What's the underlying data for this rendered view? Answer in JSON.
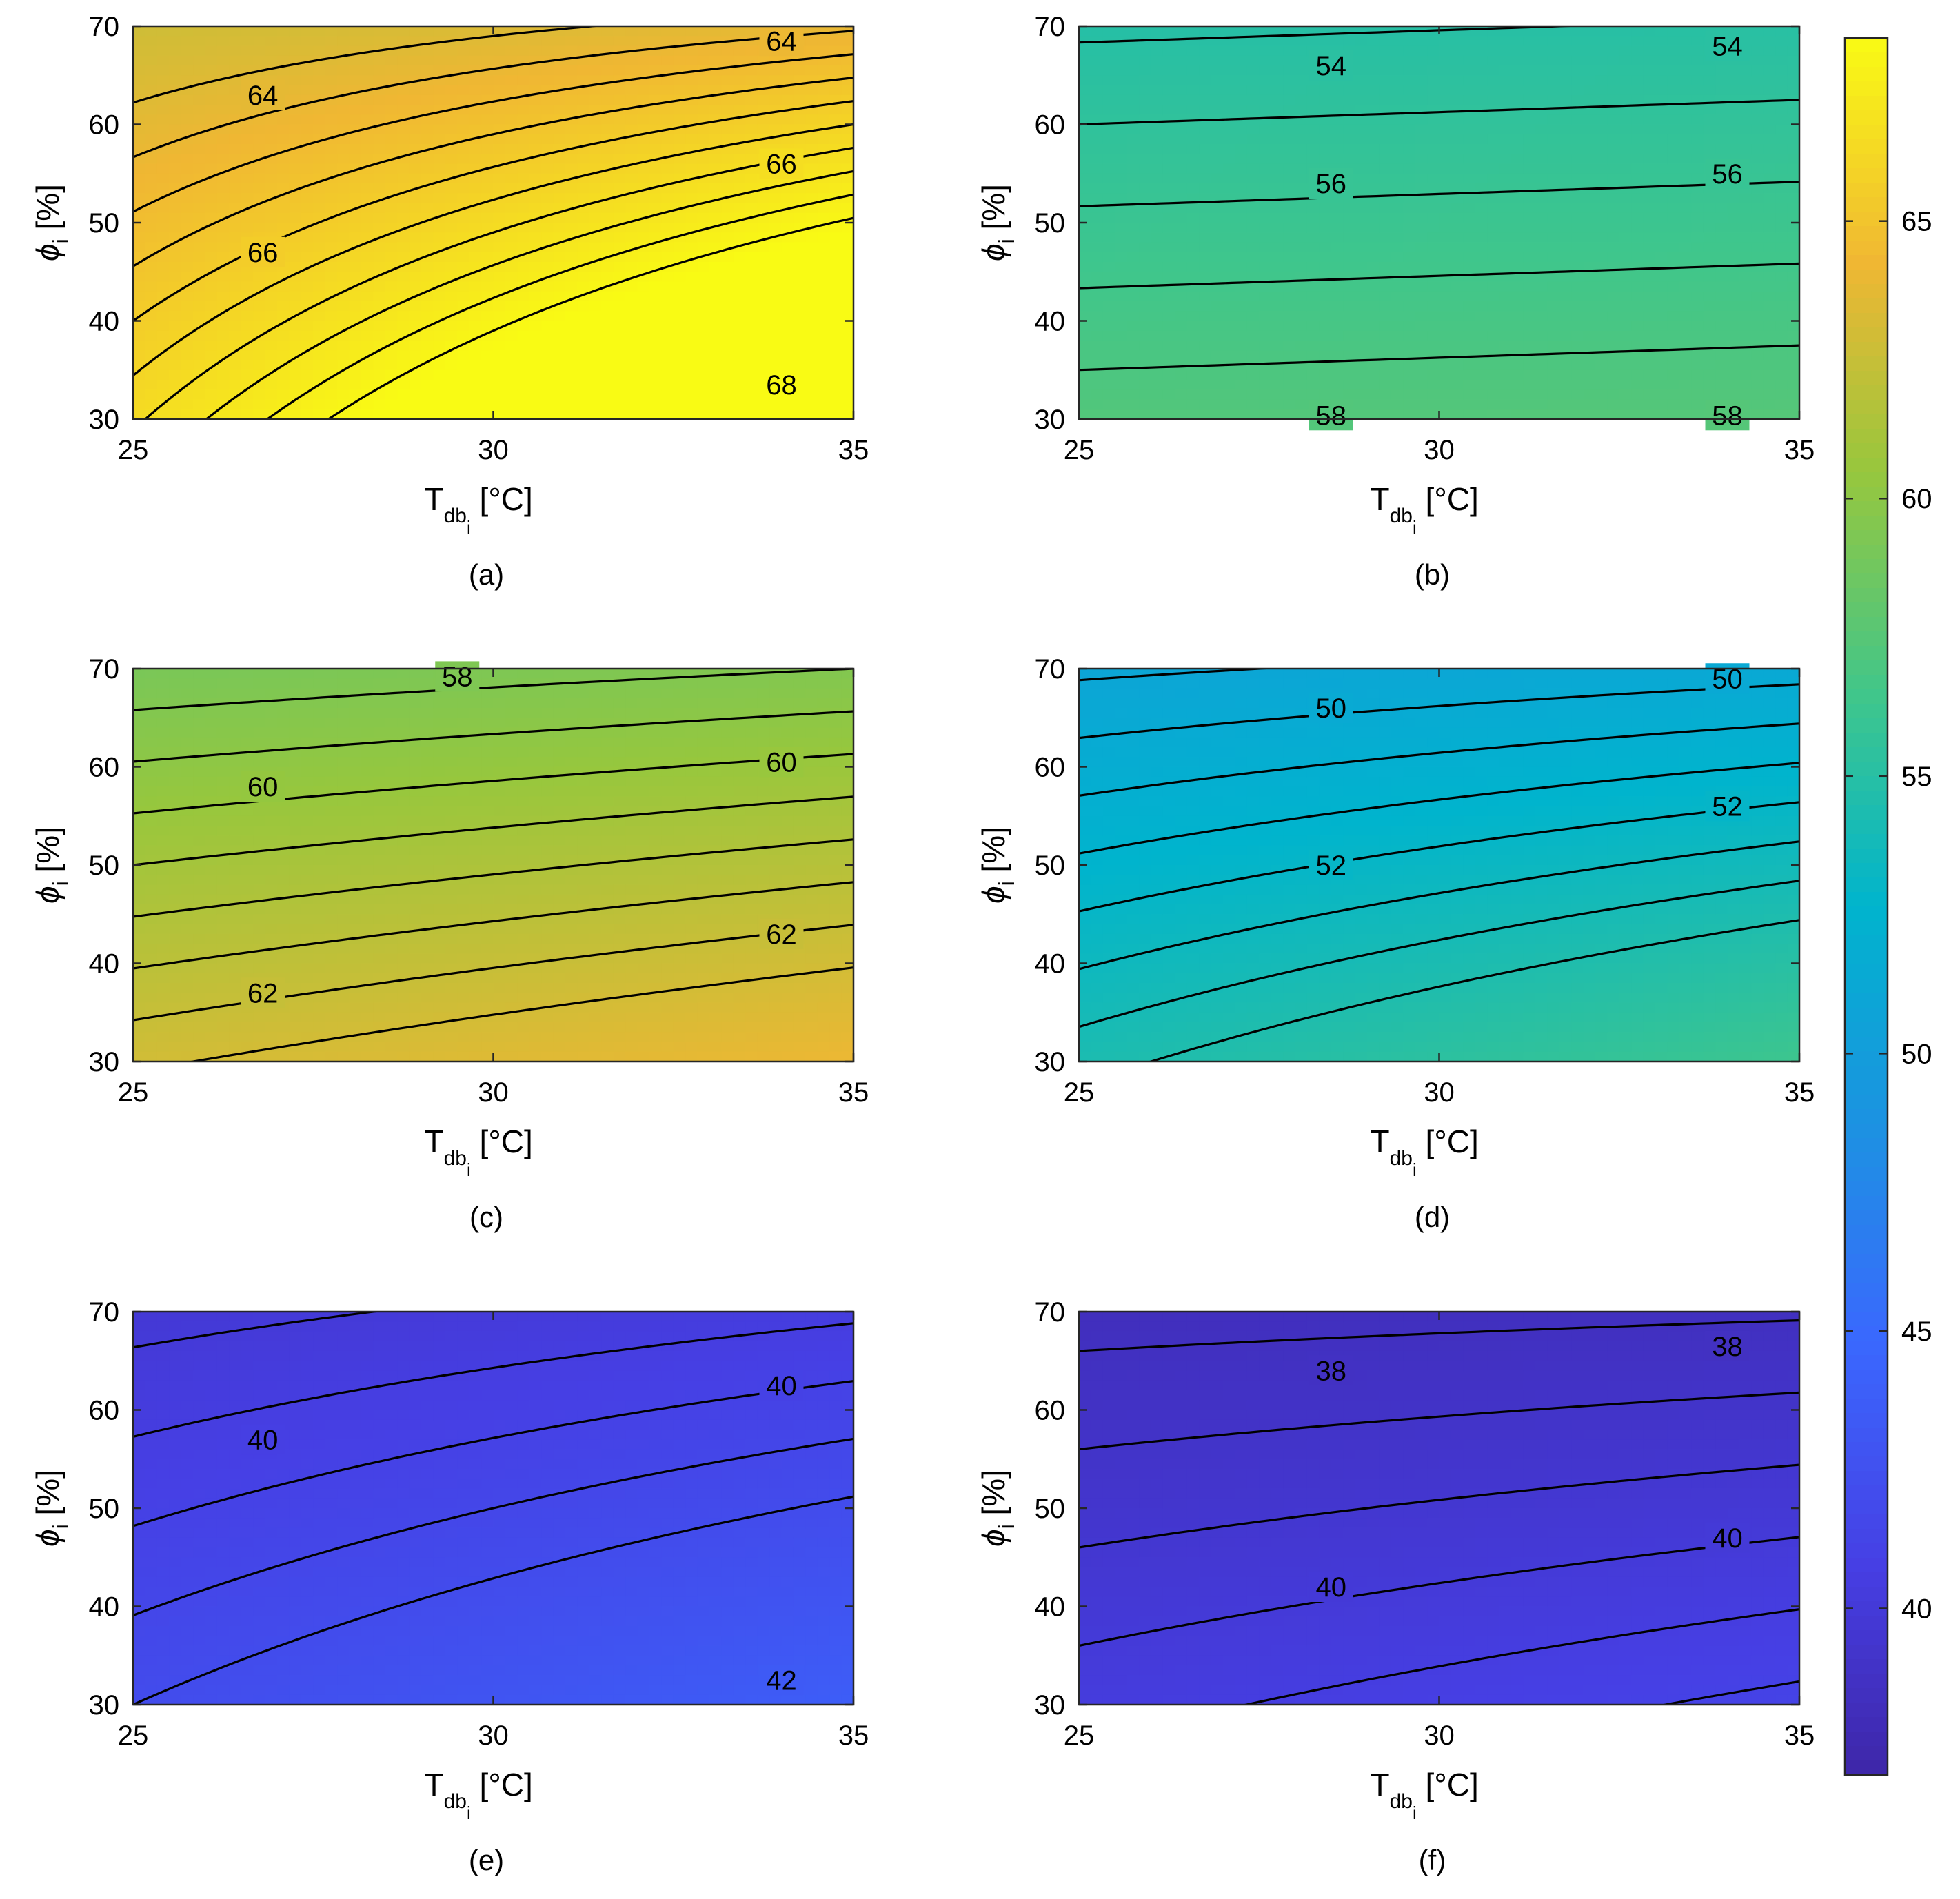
{
  "chart_data": {
    "type": "contour",
    "colormap": "parula",
    "colorbar": {
      "range": [
        37,
        68.3
      ],
      "ticks": [
        40,
        45,
        50,
        55,
        60,
        65
      ]
    },
    "xlim": [
      25,
      35
    ],
    "ylim": [
      30,
      70
    ],
    "xticks": [
      25,
      30,
      35
    ],
    "yticks": [
      30,
      40,
      50,
      60,
      70
    ],
    "xlabel": {
      "main": "T",
      "sub": "db",
      "subsub": "i",
      "unit": " [°C]"
    },
    "ylabel": {
      "main": "ϕ",
      "sub": "i",
      "unit": " [%]"
    },
    "panels": [
      {
        "id": "a",
        "caption": "(a)",
        "field": {
          "base": 64.6,
          "slope_x": 0.35,
          "slope_y": -0.09,
          "curv": -0.012
        },
        "levels": [
          63.5,
          64,
          64.5,
          65,
          65.5,
          66,
          66.5,
          67,
          67.5,
          68
        ],
        "labels": [
          {
            "text": "64",
            "x": 26.8,
            "y": 63
          },
          {
            "text": "64",
            "x": 34.0,
            "y": 68.5
          },
          {
            "text": "66",
            "x": 34.0,
            "y": 56
          },
          {
            "text": "66",
            "x": 26.8,
            "y": 47
          },
          {
            "text": "68",
            "x": 34.0,
            "y": 33.5
          }
        ]
      },
      {
        "id": "b",
        "caption": "(b)",
        "field": {
          "base": 56.1,
          "slope_x": 0.015,
          "slope_y": -0.06,
          "curv": 0.0
        },
        "levels": [
          53.5,
          54,
          54.5,
          55,
          55.5,
          56,
          56.5,
          57,
          57.5,
          58
        ],
        "labels": [
          {
            "text": "54",
            "x": 28.5,
            "y": 66
          },
          {
            "text": "54",
            "x": 34.0,
            "y": 68.0
          },
          {
            "text": "56",
            "x": 28.5,
            "y": 54
          },
          {
            "text": "56",
            "x": 34.0,
            "y": 55
          },
          {
            "text": "58",
            "x": 28.5,
            "y": 30.4
          },
          {
            "text": "58",
            "x": 34.0,
            "y": 30.4
          }
        ]
      },
      {
        "id": "c",
        "caption": "(c)",
        "field": {
          "base": 61.0,
          "slope_x": 0.08,
          "slope_y": -0.095,
          "curv": -0.002
        },
        "levels": [
          57.5,
          58,
          58.5,
          59,
          59.5,
          60,
          60.5,
          61,
          61.5,
          62,
          62.5,
          63
        ],
        "labels": [
          {
            "text": "58",
            "x": 29.5,
            "y": 69.2
          },
          {
            "text": "60",
            "x": 34.0,
            "y": 60.5
          },
          {
            "text": "60",
            "x": 26.8,
            "y": 58
          },
          {
            "text": "62",
            "x": 34.0,
            "y": 43
          },
          {
            "text": "62",
            "x": 26.8,
            "y": 37
          }
        ]
      },
      {
        "id": "d",
        "caption": "(d)",
        "field": {
          "base": 52.6,
          "slope_x": 0.12,
          "slope_y": -0.085,
          "curv": -0.004
        },
        "levels": [
          49.5,
          50,
          50.5,
          51,
          51.5,
          52,
          52.5,
          53,
          53.5,
          54,
          54.5
        ],
        "labels": [
          {
            "text": "50",
            "x": 34.0,
            "y": 69.0
          },
          {
            "text": "50",
            "x": 28.5,
            "y": 66
          },
          {
            "text": "52",
            "x": 34.0,
            "y": 56
          },
          {
            "text": "52",
            "x": 28.5,
            "y": 50
          }
        ]
      },
      {
        "id": "e",
        "caption": "(e)",
        "field": {
          "base": 40.9,
          "slope_x": 0.12,
          "slope_y": -0.055,
          "curv": -0.003
        },
        "levels": [
          39,
          39.5,
          40,
          40.5,
          41,
          41.5,
          42
        ],
        "labels": [
          {
            "text": "40",
            "x": 34.0,
            "y": 62.5
          },
          {
            "text": "40",
            "x": 26.8,
            "y": 57
          },
          {
            "text": "42",
            "x": 34.0,
            "y": 32.5
          }
        ]
      },
      {
        "id": "f",
        "caption": "(f)",
        "field": {
          "base": 39.3,
          "slope_x": 0.05,
          "slope_y": -0.05,
          "curv": -0.0018
        },
        "levels": [
          37.5,
          38,
          38.5,
          39,
          39.5,
          40,
          40.5,
          41
        ],
        "labels": [
          {
            "text": "38",
            "x": 34.0,
            "y": 66.5
          },
          {
            "text": "38",
            "x": 28.5,
            "y": 64
          },
          {
            "text": "40",
            "x": 34.0,
            "y": 47
          },
          {
            "text": "40",
            "x": 28.5,
            "y": 42
          }
        ]
      }
    ]
  }
}
